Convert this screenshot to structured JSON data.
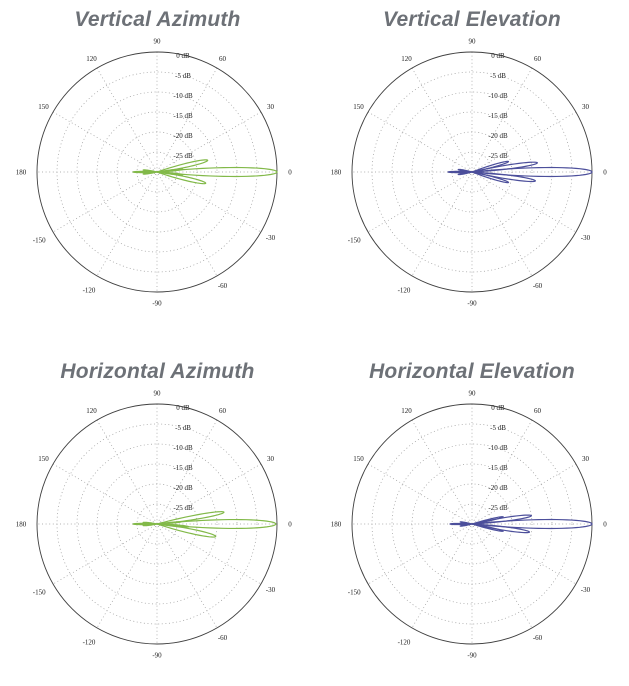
{
  "page": {
    "background": "#ffffff",
    "title_color": "#6d7177",
    "grid_color": "#9a9a9a",
    "outline_color": "#3f3f3f",
    "tick_color": "#222222"
  },
  "chart_data": [
    {
      "type": "polar",
      "title": "Vertical Azimuth",
      "color": "#82b949",
      "angle_ticks_deg": [
        0,
        30,
        60,
        90,
        120,
        150,
        180,
        -150,
        -120,
        -90,
        -60,
        -30
      ],
      "radial_ticks": [
        "0 dB",
        "-5 dB",
        "-10 dB",
        "-15 dB",
        "-20 dB",
        "-25 dB"
      ],
      "ring_db": [
        0,
        -5,
        -10,
        -15,
        -20,
        -25
      ],
      "r_axis": {
        "min_db": -30,
        "max_db": 0,
        "step_db": 5
      },
      "legend": "none",
      "grid": "dotted",
      "lobes": [
        {
          "angle_deg": 0,
          "peak_db": 0,
          "width_deg": 6
        },
        {
          "angle_deg": 13,
          "peak_db": -17,
          "width_deg": 6
        },
        {
          "angle_deg": -13,
          "peak_db": -17.5,
          "width_deg": 6
        },
        {
          "angle_deg": 6,
          "peak_db": -23.5,
          "width_deg": 4
        },
        {
          "angle_deg": -6,
          "peak_db": -23.5,
          "width_deg": 4
        },
        {
          "angle_deg": 180,
          "peak_db": -24,
          "width_deg": 4
        },
        {
          "angle_deg": 172,
          "peak_db": -26.5,
          "width_deg": 6
        },
        {
          "angle_deg": 188,
          "peak_db": -26.5,
          "width_deg": 6
        }
      ]
    },
    {
      "type": "polar",
      "title": "Vertical Elevation",
      "color": "#4c4f9b",
      "angle_ticks_deg": [
        0,
        30,
        60,
        90,
        120,
        150,
        180,
        -150,
        -120,
        -90,
        -60,
        -30
      ],
      "radial_ticks": [
        "0 dB",
        "-5 dB",
        "-10 dB",
        "-15 dB",
        "-20 dB",
        "-25 dB"
      ],
      "ring_db": [
        0,
        -5,
        -10,
        -15,
        -20,
        -25
      ],
      "r_axis": {
        "min_db": -30,
        "max_db": 0,
        "step_db": 5
      },
      "legend": "none",
      "grid": "dotted",
      "lobes": [
        {
          "angle_deg": 0,
          "peak_db": 0,
          "width_deg": 6
        },
        {
          "angle_deg": 8,
          "peak_db": -13.5,
          "width_deg": 5
        },
        {
          "angle_deg": -8,
          "peak_db": -14,
          "width_deg": 5
        },
        {
          "angle_deg": 16,
          "peak_db": -20.5,
          "width_deg": 5
        },
        {
          "angle_deg": -16,
          "peak_db": -20.5,
          "width_deg": 5
        },
        {
          "angle_deg": 180,
          "peak_db": -24,
          "width_deg": 4
        },
        {
          "angle_deg": 170,
          "peak_db": -26.5,
          "width_deg": 6
        },
        {
          "angle_deg": 190,
          "peak_db": -26.5,
          "width_deg": 6
        }
      ]
    },
    {
      "type": "polar",
      "title": "Horizontal Azimuth",
      "color": "#82b949",
      "angle_ticks_deg": [
        0,
        30,
        60,
        90,
        120,
        150,
        180,
        -150,
        -120,
        -90,
        -60,
        -30
      ],
      "radial_ticks": [
        "0 dB",
        "-5 dB",
        "-10 dB",
        "-15 dB",
        "-20 dB",
        "-25 dB"
      ],
      "ring_db": [
        0,
        -5,
        -10,
        -15,
        -20,
        -25
      ],
      "r_axis": {
        "min_db": -30,
        "max_db": 0,
        "step_db": 5
      },
      "legend": "none",
      "grid": "dotted",
      "lobes": [
        {
          "angle_deg": 0,
          "peak_db": -0.3,
          "width_deg": 6
        },
        {
          "angle_deg": 10,
          "peak_db": -13,
          "width_deg": 5
        },
        {
          "angle_deg": -12,
          "peak_db": -15,
          "width_deg": 6
        },
        {
          "angle_deg": -5,
          "peak_db": -22,
          "width_deg": 4
        },
        {
          "angle_deg": 5,
          "peak_db": -24,
          "width_deg": 3
        },
        {
          "angle_deg": 180,
          "peak_db": -24,
          "width_deg": 4
        },
        {
          "angle_deg": 174,
          "peak_db": -26.5,
          "width_deg": 6
        },
        {
          "angle_deg": 186,
          "peak_db": -26.5,
          "width_deg": 6
        }
      ]
    },
    {
      "type": "polar",
      "title": "Horizontal Elevation",
      "color": "#4c4f9b",
      "angle_ticks_deg": [
        0,
        30,
        60,
        90,
        120,
        150,
        180,
        -150,
        -120,
        -90,
        -60,
        -30
      ],
      "radial_ticks": [
        "0 dB",
        "-5 dB",
        "-10 dB",
        "-15 dB",
        "-20 dB",
        "-25 dB"
      ],
      "ring_db": [
        0,
        -5,
        -10,
        -15,
        -20,
        -25
      ],
      "r_axis": {
        "min_db": -30,
        "max_db": 0,
        "step_db": 5
      },
      "legend": "none",
      "grid": "dotted",
      "lobes": [
        {
          "angle_deg": 0,
          "peak_db": 0,
          "width_deg": 6
        },
        {
          "angle_deg": 8,
          "peak_db": -15,
          "width_deg": 5
        },
        {
          "angle_deg": -8,
          "peak_db": -15.5,
          "width_deg": 5
        },
        {
          "angle_deg": 13,
          "peak_db": -22,
          "width_deg": 4
        },
        {
          "angle_deg": -13,
          "peak_db": -22,
          "width_deg": 4
        },
        {
          "angle_deg": 180,
          "peak_db": -24.5,
          "width_deg": 4
        },
        {
          "angle_deg": 170,
          "peak_db": -27,
          "width_deg": 5
        },
        {
          "angle_deg": 190,
          "peak_db": -27,
          "width_deg": 5
        }
      ]
    }
  ]
}
